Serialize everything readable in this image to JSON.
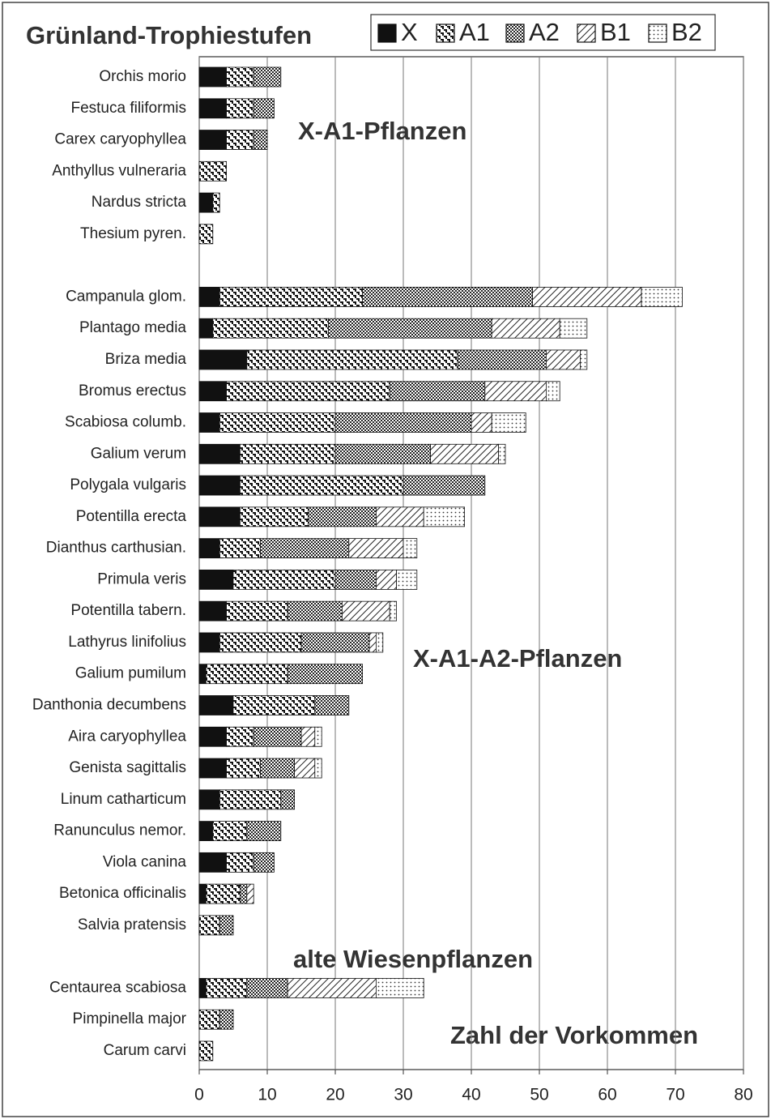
{
  "chart_data": {
    "type": "stacked_barh",
    "title": "Grünland-Trophiestufen",
    "xlabel": "Zahl der Vorkommen",
    "annotations": [
      "X-A1-Pflanzen",
      "X-A1-A2-Pflanzen",
      "alte Wiesenpflanzen"
    ],
    "categories": [
      "Orchis morio",
      "Festuca filiformis",
      "Carex caryophyllea",
      "Anthyllus vulneraria",
      "Nardus stricta",
      "Thesium pyren.",
      null,
      "Campanula glom.",
      "Plantago media",
      "Briza media",
      "Bromus erectus",
      "Scabiosa columb.",
      "Galium verum",
      "Polygala vulgaris",
      "Potentilla erecta",
      "Dianthus carthusian.",
      "Primula veris",
      "Potentilla tabern.",
      "Lathyrus linifolius",
      "Galium pumilum",
      "Danthonia decumbens",
      "Aira caryophyllea",
      "Genista sagittalis",
      "Linum catharticum",
      "Ranunculus nemor.",
      "Viola canina",
      "Betonica officinalis",
      "Salvia pratensis",
      null,
      "Centaurea scabiosa",
      "Pimpinella major",
      "Carum carvi"
    ],
    "series": [
      {
        "name": "X",
        "color": "#111111",
        "values": [
          4,
          4,
          4,
          0,
          2,
          0,
          null,
          3,
          2,
          7,
          4,
          3,
          6,
          6,
          6,
          3,
          5,
          4,
          3,
          1,
          5,
          4,
          4,
          3,
          2,
          4,
          1,
          0,
          null,
          1,
          0,
          0
        ]
      },
      {
        "name": "A1",
        "color": "#111111",
        "values": [
          4,
          4,
          4,
          4,
          1,
          2,
          null,
          21,
          17,
          31,
          24,
          17,
          14,
          24,
          10,
          6,
          15,
          9,
          12,
          12,
          12,
          4,
          5,
          9,
          5,
          4,
          5,
          3,
          null,
          6,
          3,
          2
        ]
      },
      {
        "name": "A2",
        "color": "#111111",
        "values": [
          4,
          3,
          2,
          0,
          0,
          0,
          null,
          25,
          24,
          13,
          14,
          20,
          14,
          12,
          10,
          13,
          6,
          8,
          10,
          11,
          5,
          7,
          5,
          2,
          5,
          3,
          1,
          2,
          null,
          6,
          2,
          0
        ]
      },
      {
        "name": "B1",
        "color": "#111111",
        "values": [
          0,
          0,
          0,
          0,
          0,
          0,
          null,
          16,
          10,
          5,
          9,
          3,
          10,
          0,
          7,
          8,
          3,
          7,
          1,
          0,
          0,
          2,
          3,
          0,
          0,
          0,
          1,
          0,
          null,
          13,
          0,
          0
        ]
      },
      {
        "name": "B2",
        "color": "#111111",
        "values": [
          0,
          0,
          0,
          0,
          0,
          0,
          null,
          6,
          4,
          1,
          2,
          5,
          1,
          0,
          6,
          2,
          3,
          1,
          1,
          0,
          0,
          1,
          1,
          0,
          0,
          0,
          0,
          0,
          null,
          7,
          0,
          0
        ]
      }
    ],
    "xlim": [
      0,
      80
    ],
    "xticks": [
      0,
      10,
      20,
      30,
      40,
      50,
      60,
      70,
      80
    ],
    "grid": true
  }
}
